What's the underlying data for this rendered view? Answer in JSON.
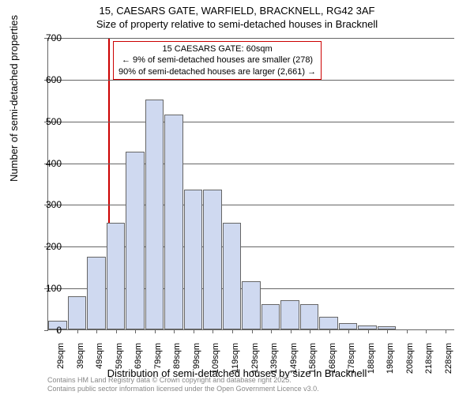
{
  "chart": {
    "type": "histogram",
    "title_line1": "15, CAESARS GATE, WARFIELD, BRACKNELL, RG42 3AF",
    "title_line2": "Size of property relative to semi-detached houses in Bracknell",
    "title_fontsize": 13,
    "ylabel": "Number of semi-detached properties",
    "xlabel": "Distribution of semi-detached houses by size in Bracknell",
    "label_fontsize": 13,
    "background_color": "#ffffff",
    "grid_color": "#666666",
    "bar_fill_color": "#cfd9f0",
    "bar_border_color": "#666666",
    "ylim": [
      0,
      700
    ],
    "ytick_step": 100,
    "yticks": [
      0,
      100,
      200,
      300,
      400,
      500,
      600,
      700
    ],
    "x_categories": [
      "29sqm",
      "39sqm",
      "49sqm",
      "59sqm",
      "69sqm",
      "79sqm",
      "89sqm",
      "99sqm",
      "109sqm",
      "119sqm",
      "129sqm",
      "139sqm",
      "149sqm",
      "158sqm",
      "168sqm",
      "178sqm",
      "188sqm",
      "198sqm",
      "208sqm",
      "218sqm",
      "228sqm"
    ],
    "values": [
      20,
      80,
      175,
      255,
      425,
      550,
      515,
      335,
      335,
      255,
      115,
      60,
      70,
      60,
      30,
      15,
      10,
      8,
      0,
      0,
      0
    ],
    "tick_fontsize": 12,
    "x_tick_fontsize": 11,
    "reference_line": {
      "x_index": 3,
      "color": "#cc0000",
      "width": 2
    },
    "annotation": {
      "line1": "15 CAESARS GATE: 60sqm",
      "line2": "← 9% of semi-detached houses are smaller (278)",
      "line3": "90% of semi-detached houses are larger (2,661) →",
      "border_color": "#cc0000",
      "text_color": "#000000",
      "fontsize": 11
    },
    "credits_line1": "Contains HM Land Registry data © Crown copyright and database right 2025.",
    "credits_line2": "Contains public sector information licensed under the Open Government Licence v3.0.",
    "credits_color": "#888888",
    "credits_fontsize": 9
  }
}
